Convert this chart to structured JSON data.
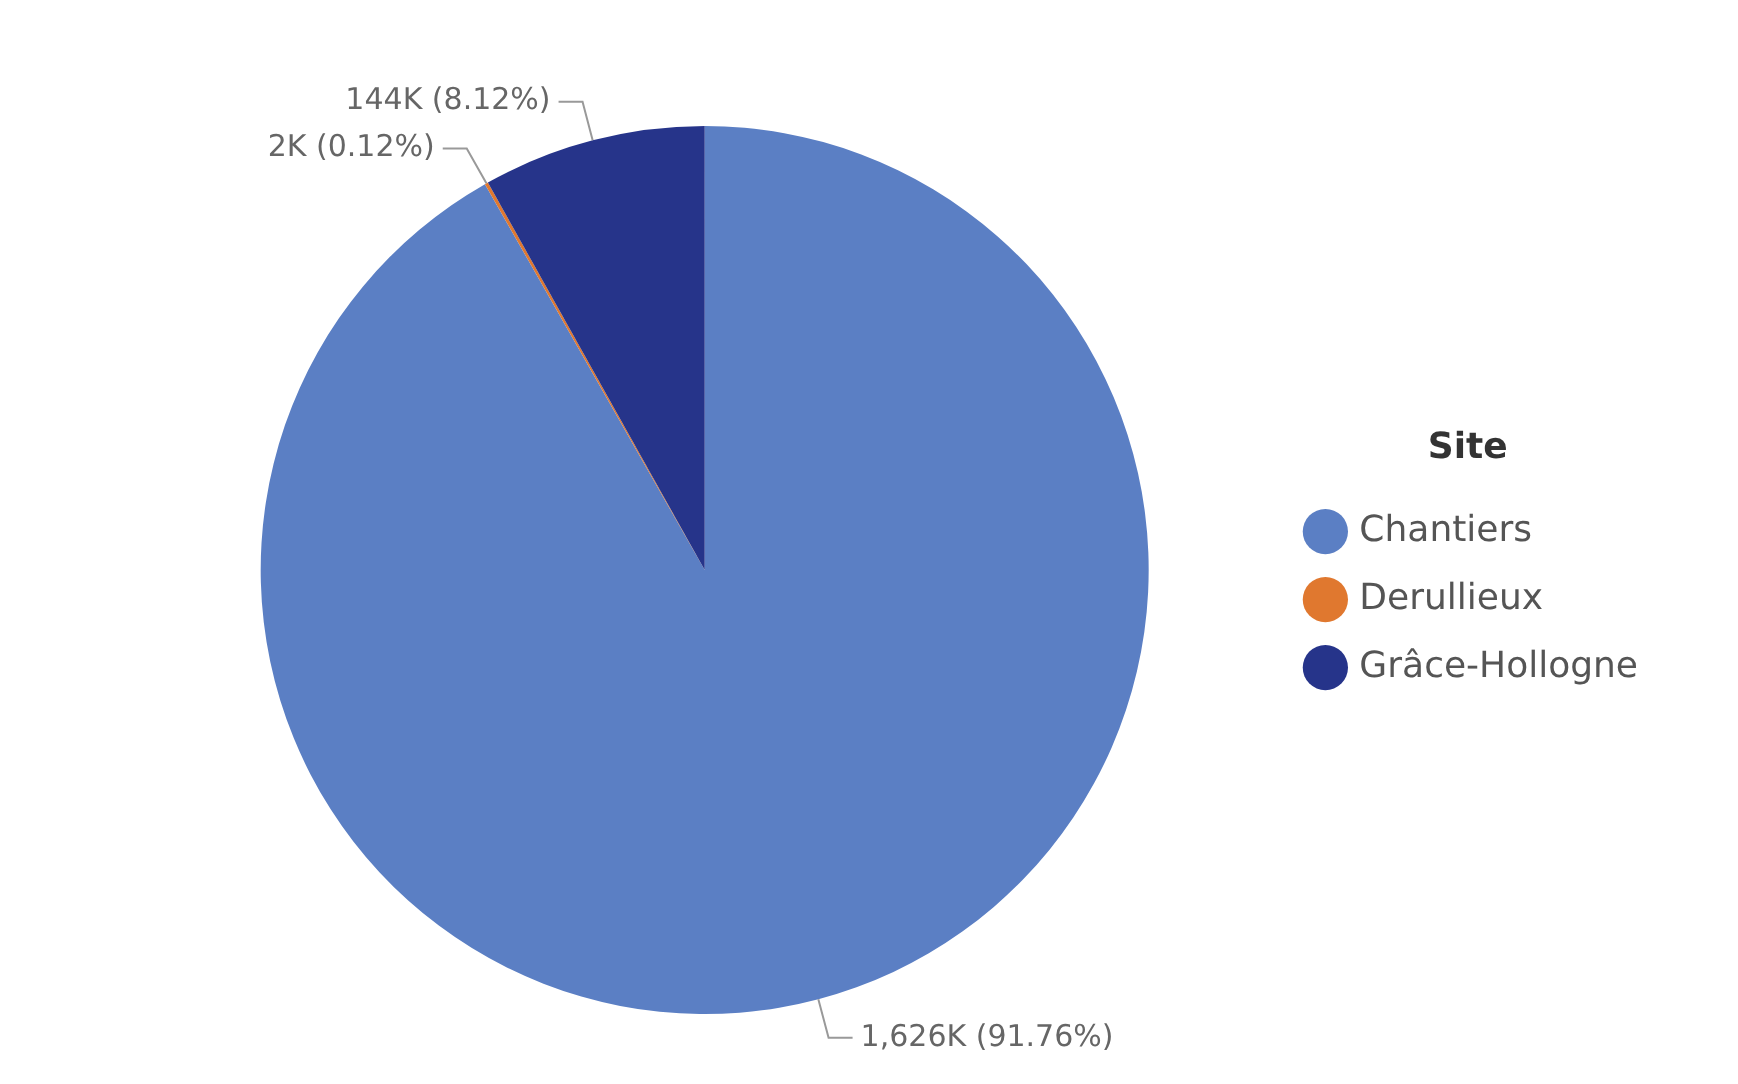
{
  "chart_data": {
    "type": "pie",
    "legend_title": "Site",
    "legend": "right",
    "categories": [
      "Chantiers",
      "Derullieux",
      "Grâce-Hollogne"
    ],
    "values": [
      91.76,
      0.12,
      8.12
    ],
    "colors": [
      "#5b7fc4",
      "#e0782f",
      "#26348a"
    ],
    "value_labels": [
      "1,626K (91.76%)",
      "2K (0.12%)",
      "144K (8.12%)"
    ]
  }
}
